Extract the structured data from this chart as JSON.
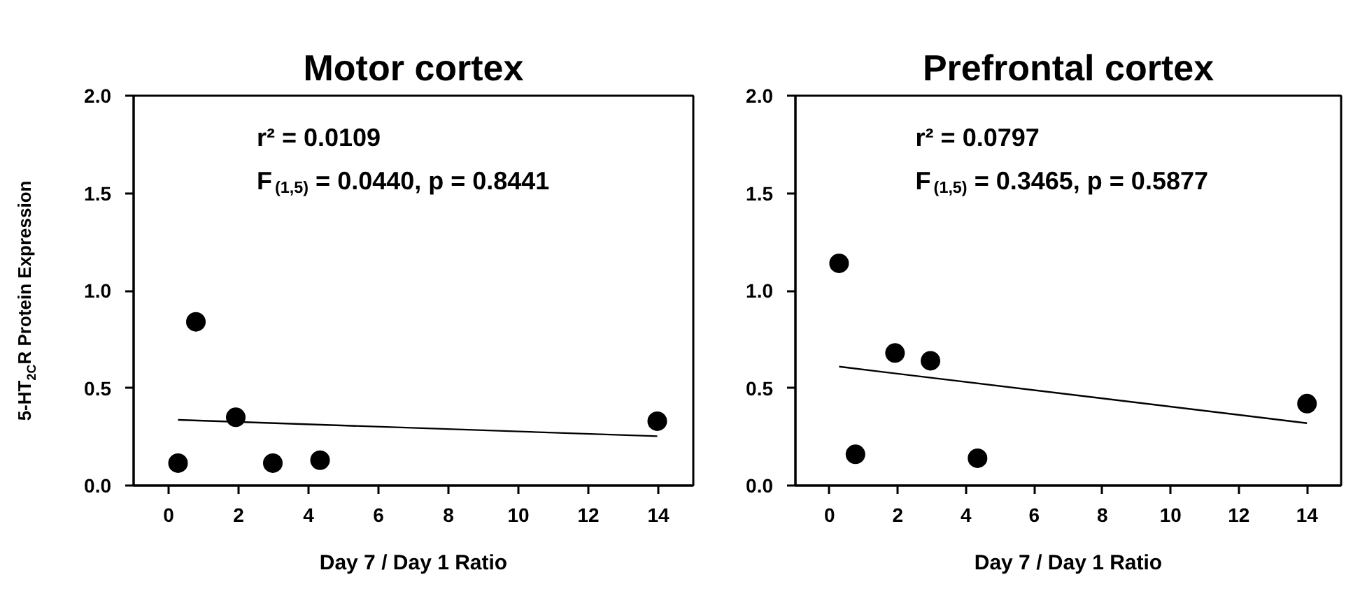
{
  "chart_data": [
    {
      "type": "scatter",
      "title": "Motor cortex",
      "xlabel": "Day 7 / Day 1 Ratio",
      "ylabel": "5-HT$_{2C}$R Protein Expression",
      "xlim": [
        -1,
        15
      ],
      "ylim": [
        0,
        2
      ],
      "xticks": [
        0,
        2,
        4,
        6,
        8,
        10,
        12,
        14
      ],
      "yticks": [
        {
          "value": 0,
          "label": "0.0"
        },
        {
          "value": 0.5,
          "label": "0.5"
        },
        {
          "value": 1,
          "label": "1.0"
        },
        {
          "value": 1.5,
          "label": "1.5"
        },
        {
          "value": 2,
          "label": "2.0"
        }
      ],
      "marker": "circle",
      "grid": false,
      "annotations": [
        "r² = 0.0109",
        "F$_{(1,5)}$ = 0.0440, p = 0.8441"
      ],
      "series": [
        {
          "type": "scatter",
          "color": "#000000",
          "x": [
            0.27,
            0.78,
            1.92,
            2.98,
            4.33,
            13.97
          ],
          "values": [
            0.115,
            0.84,
            0.35,
            0.115,
            0.13,
            0.33
          ]
        },
        {
          "type": "line",
          "marker": "none",
          "color": "#000000",
          "x": [
            0.27,
            13.97
          ],
          "values": [
            0.337,
            0.253
          ]
        }
      ]
    },
    {
      "type": "scatter",
      "title": "Prefrontal cortex",
      "xlabel": "Day 7 / Day 1 Ratio",
      "xlim": [
        -1,
        15
      ],
      "ylim": [
        0,
        2
      ],
      "xticks": [
        0,
        2,
        4,
        6,
        8,
        10,
        12,
        14
      ],
      "yticks": [
        {
          "value": 0,
          "label": "0.0"
        },
        {
          "value": 0.5,
          "label": "0.5"
        },
        {
          "value": 1,
          "label": "1.0"
        },
        {
          "value": 1.5,
          "label": "1.5"
        },
        {
          "value": 2,
          "label": "2.0"
        }
      ],
      "marker": "circle",
      "grid": false,
      "annotations": [
        "r² = 0.0797",
        "F$_{(1,5)}$ = 0.3465, p = 0.5877"
      ],
      "series": [
        {
          "type": "scatter",
          "color": "#000000",
          "x": [
            0.28,
            0.76,
            1.92,
            2.96,
            4.34,
            14.0
          ],
          "values": [
            1.14,
            0.16,
            0.68,
            0.64,
            0.14,
            0.42
          ]
        },
        {
          "type": "line",
          "marker": "none",
          "color": "#000000",
          "x": [
            0.28,
            14.0
          ],
          "values": [
            0.61,
            0.32
          ]
        }
      ]
    }
  ]
}
